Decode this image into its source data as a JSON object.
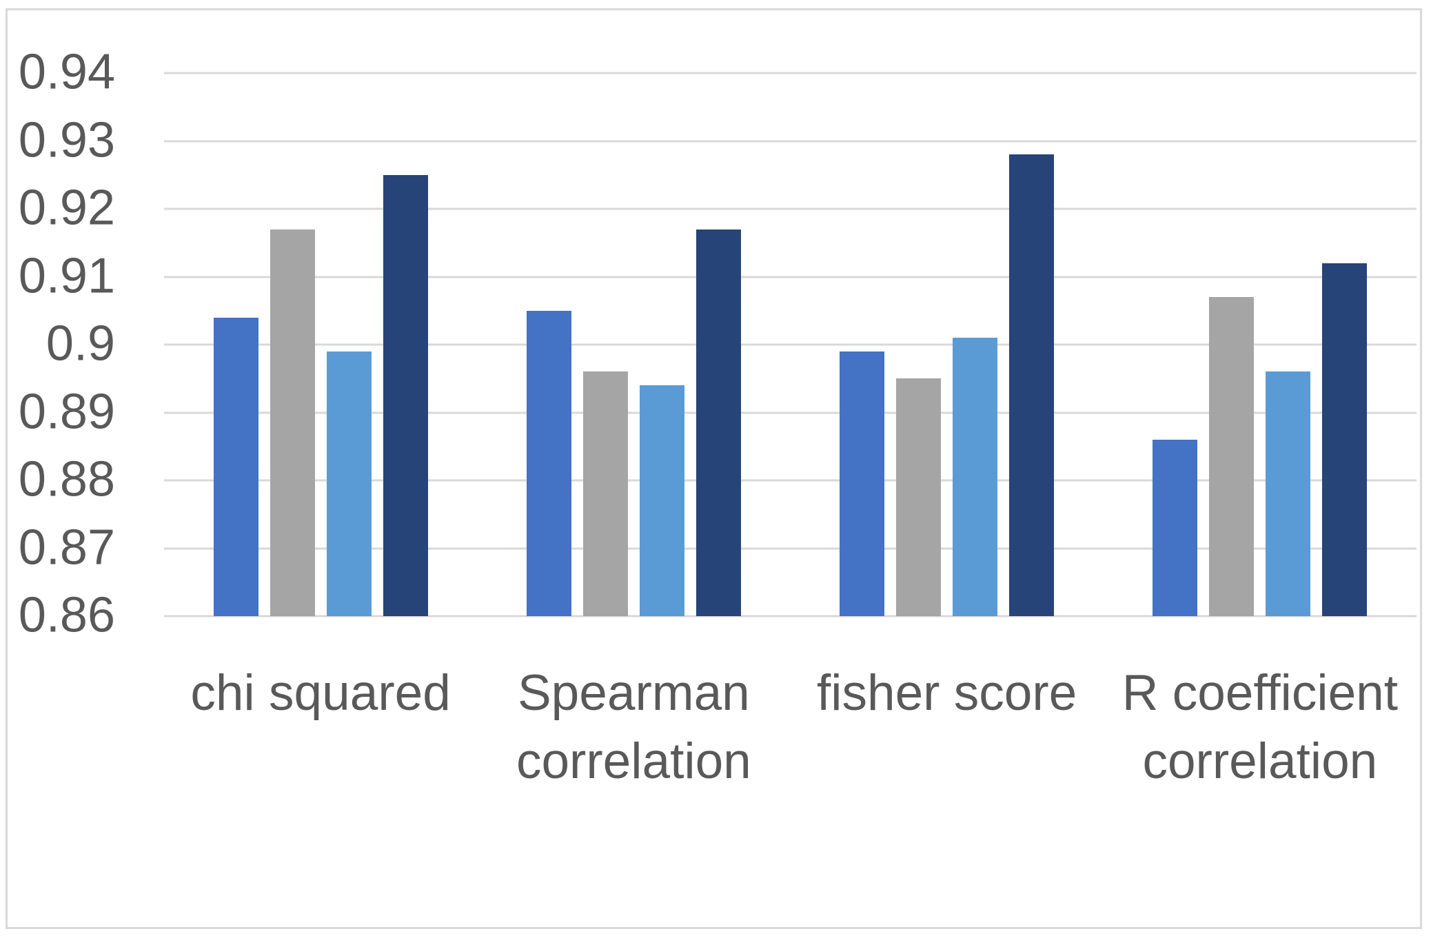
{
  "chart_data": {
    "type": "bar",
    "title": "",
    "xlabel": "",
    "ylabel": "",
    "categories": [
      "chi squared",
      "Spearman correlation",
      "fisher score",
      "R coefficient correlation"
    ],
    "category_label_lines": [
      [
        "chi squared"
      ],
      [
        "Spearman",
        "correlation"
      ],
      [
        "fisher score"
      ],
      [
        "R coefficient",
        "correlation"
      ]
    ],
    "series": [
      {
        "color": "#4472C4",
        "values": [
          0.904,
          0.905,
          0.899,
          0.886
        ]
      },
      {
        "color": "#A5A5A5",
        "values": [
          0.917,
          0.896,
          0.895,
          0.907
        ]
      },
      {
        "color": "#5B9BD5",
        "values": [
          0.899,
          0.894,
          0.901,
          0.896
        ]
      },
      {
        "color": "#264478",
        "values": [
          0.925,
          0.917,
          0.928,
          0.912
        ]
      }
    ],
    "ylim": [
      0.86,
      0.94
    ],
    "y_ticks": [
      "0.94",
      "0.93",
      "0.92",
      "0.91",
      "0.9",
      "0.89",
      "0.88",
      "0.87",
      "0.86"
    ],
    "grid": true,
    "legend": "none"
  },
  "colors": {
    "axis_text": "#595959",
    "gridline": "#D9D9D9",
    "frame_border": "#D9D9D9",
    "background": "#FFFFFF"
  }
}
